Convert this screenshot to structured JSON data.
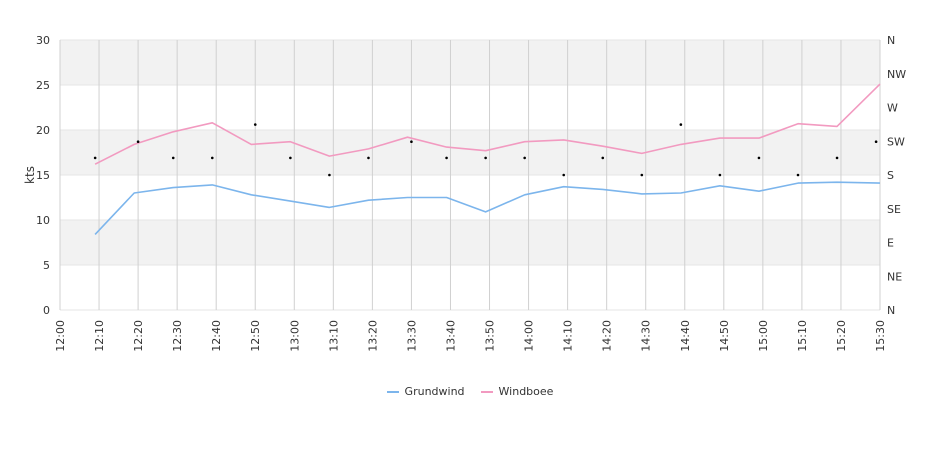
{
  "chart_data": {
    "type": "line",
    "ylabel": "kts",
    "ylim": [
      0,
      30
    ],
    "yticks": [
      "0",
      "5",
      "10",
      "15",
      "20",
      "25",
      "30"
    ],
    "y2ticks": [
      "N",
      "NE",
      "E",
      "SE",
      "S",
      "SW",
      "W",
      "NW",
      "N"
    ],
    "xticks": [
      "12:00",
      "12:10",
      "12:20",
      "12:30",
      "12:40",
      "12:50",
      "13:00",
      "13:10",
      "13:20",
      "13:30",
      "13:40",
      "13:50",
      "14:00",
      "14:10",
      "14:20",
      "14:30",
      "14:40",
      "14:50",
      "15:00",
      "15:10",
      "15:20",
      "15:30"
    ],
    "x": [
      "12:09",
      "12:19",
      "12:29",
      "12:39",
      "12:49",
      "12:59",
      "13:09",
      "13:19",
      "13:29",
      "13:39",
      "13:49",
      "13:59",
      "14:09",
      "14:19",
      "14:29",
      "14:39",
      "14:49",
      "14:59",
      "15:09",
      "15:19",
      "15:30"
    ],
    "series": [
      {
        "name": "Grundwind",
        "color": "#7cb5ec",
        "values": [
          8.4,
          13.0,
          13.6,
          13.9,
          12.8,
          12.1,
          11.4,
          12.2,
          12.5,
          12.5,
          10.9,
          12.8,
          13.7,
          13.4,
          12.9,
          13.0,
          13.8,
          13.2,
          14.1,
          14.2,
          14.1
        ]
      },
      {
        "name": "Windboee",
        "color": "#f29ac0",
        "values": [
          16.2,
          18.4,
          19.8,
          20.8,
          18.4,
          18.7,
          17.1,
          17.9,
          19.2,
          18.1,
          17.7,
          18.7,
          18.9,
          18.2,
          17.4,
          18.4,
          19.1,
          19.1,
          20.7,
          20.4,
          25.1
        ]
      }
    ],
    "direction_markers": {
      "x": [
        "12:09",
        "12:20",
        "12:29",
        "12:39",
        "12:50",
        "12:59",
        "13:09",
        "13:19",
        "13:30",
        "13:39",
        "13:49",
        "13:59",
        "14:09",
        "14:19",
        "14:29",
        "14:39",
        "14:49",
        "14:59",
        "15:09",
        "15:19",
        "15:29"
      ],
      "values": [
        16.9,
        18.7,
        16.9,
        16.9,
        20.6,
        16.9,
        15.0,
        16.9,
        18.7,
        16.9,
        16.9,
        16.9,
        15.0,
        16.9,
        15.0,
        20.6,
        15.0,
        16.9,
        15.0,
        16.9,
        18.7
      ]
    },
    "grid": true,
    "legend_position": "bottom-center"
  }
}
